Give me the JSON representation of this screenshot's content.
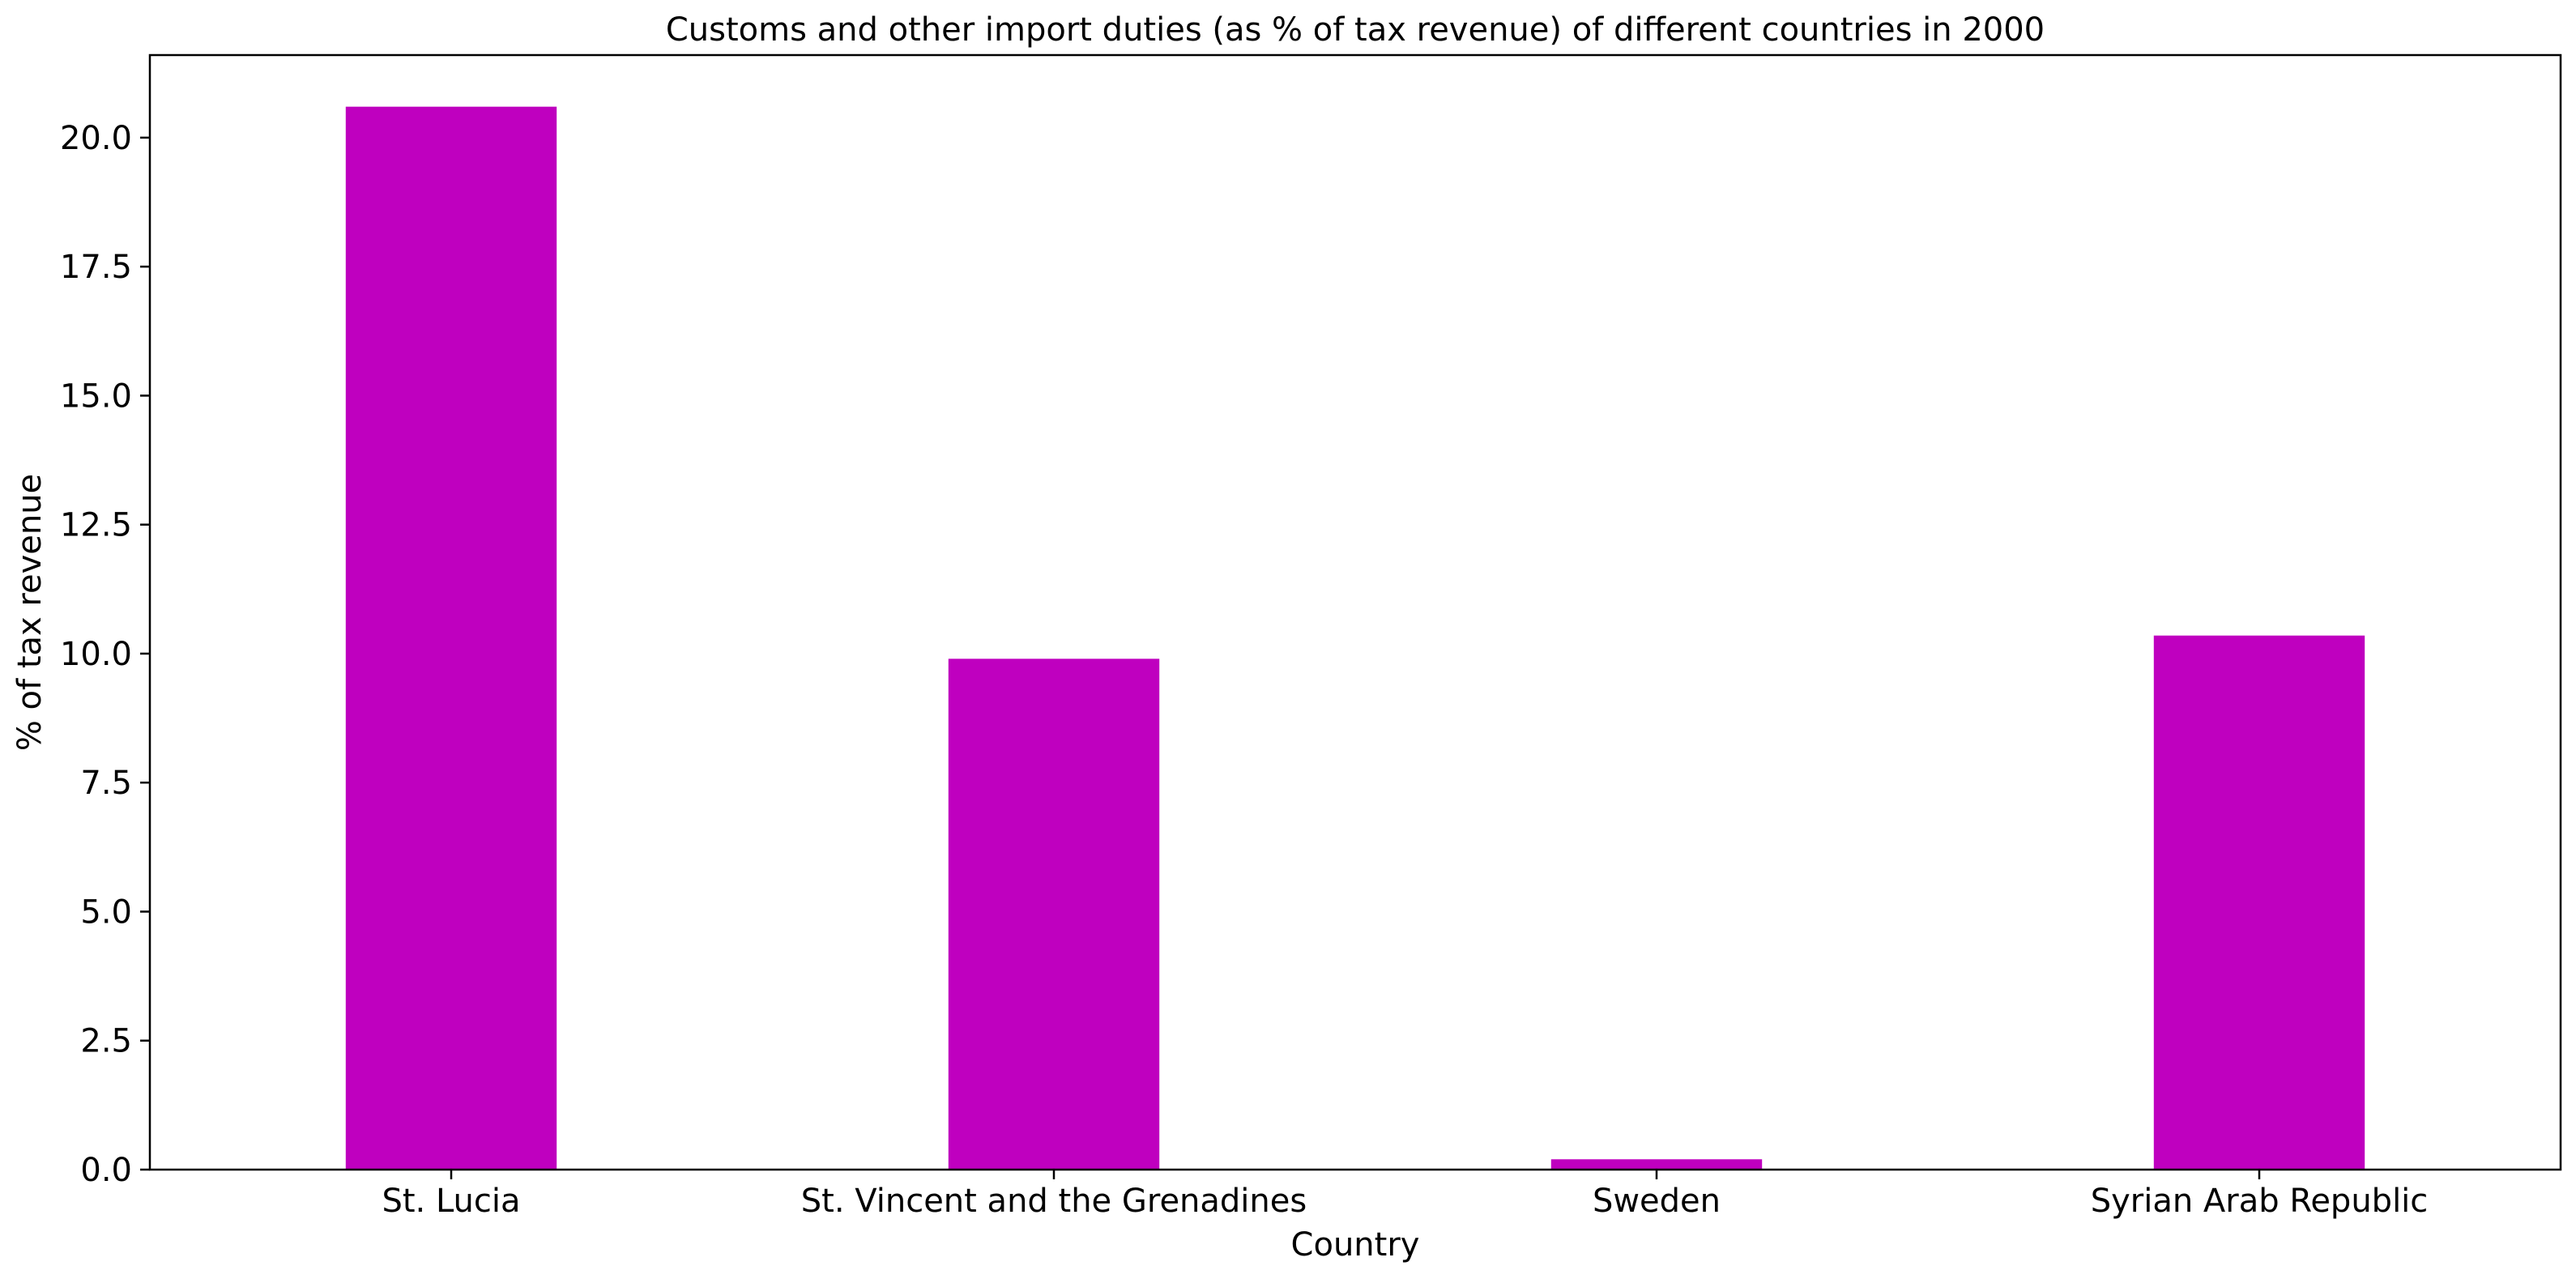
{
  "chart_data": {
    "type": "bar",
    "title": "Customs and other import duties (as % of tax revenue) of different countries in 2000",
    "xlabel": "Country",
    "ylabel": "% of tax revenue",
    "categories": [
      "St. Lucia",
      "St. Vincent and the Grenadines",
      "Sweden",
      "Syrian Arab Republic"
    ],
    "values": [
      20.6,
      9.9,
      0.2,
      10.35
    ],
    "ylim": [
      0,
      21.6
    ],
    "yticks": [
      "0.0",
      "2.5",
      "5.0",
      "7.5",
      "10.0",
      "12.5",
      "15.0",
      "17.5",
      "20.0"
    ],
    "grid": false,
    "legend": "none",
    "colors": {
      "bar": "#bf00bf",
      "axis": "#000000"
    }
  }
}
